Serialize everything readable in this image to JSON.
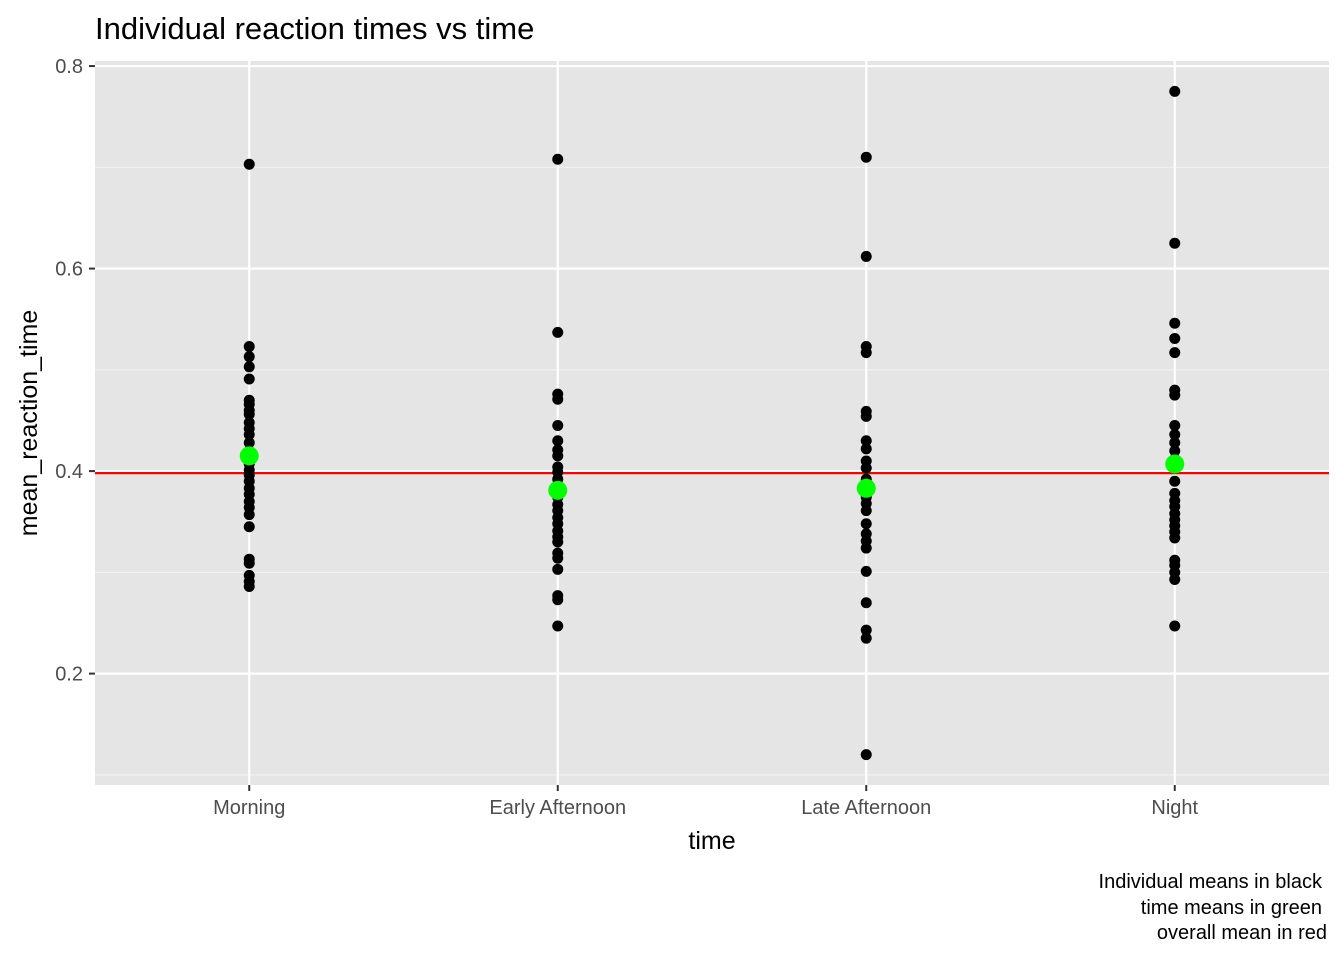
{
  "chart_data": {
    "type": "scatter",
    "title": "Individual reaction times vs time",
    "xlabel": "time",
    "ylabel": "mean_reaction_time",
    "categories": [
      "Morning",
      "Early Afternoon",
      "Late Afternoon",
      "Night"
    ],
    "ylim": [
      0.09,
      0.805
    ],
    "yticks": [
      0.2,
      0.4,
      0.6,
      0.8
    ],
    "ytick_labels": [
      "0.2",
      "0.4",
      "0.6",
      "0.8"
    ],
    "grid": true,
    "caption": [
      "Individual means in black",
      "time means in green",
      "overall mean in red"
    ],
    "series": [
      {
        "color": "#000000",
        "points": {
          "Morning": [
            0.703,
            0.523,
            0.513,
            0.503,
            0.491,
            0.47,
            0.466,
            0.46,
            0.456,
            0.448,
            0.442,
            0.436,
            0.428,
            0.42,
            0.413,
            0.407,
            0.401,
            0.396,
            0.39,
            0.383,
            0.377,
            0.37,
            0.364,
            0.357,
            0.345,
            0.313,
            0.309,
            0.297,
            0.291,
            0.286
          ],
          "Early Afternoon": [
            0.708,
            0.537,
            0.476,
            0.471,
            0.445,
            0.43,
            0.421,
            0.415,
            0.404,
            0.399,
            0.392,
            0.386,
            0.38,
            0.374,
            0.367,
            0.361,
            0.354,
            0.348,
            0.341,
            0.335,
            0.33,
            0.319,
            0.314,
            0.303,
            0.277,
            0.273,
            0.247
          ],
          "Late Afternoon": [
            0.71,
            0.612,
            0.523,
            0.517,
            0.459,
            0.454,
            0.43,
            0.422,
            0.41,
            0.403,
            0.392,
            0.386,
            0.381,
            0.374,
            0.368,
            0.361,
            0.348,
            0.338,
            0.331,
            0.324,
            0.301,
            0.27,
            0.243,
            0.235,
            0.12
          ],
          "Night": [
            0.775,
            0.625,
            0.546,
            0.531,
            0.517,
            0.48,
            0.475,
            0.445,
            0.436,
            0.428,
            0.42,
            0.412,
            0.403,
            0.39,
            0.378,
            0.371,
            0.365,
            0.358,
            0.352,
            0.346,
            0.34,
            0.334,
            0.312,
            0.307,
            0.3,
            0.293,
            0.247
          ]
        }
      },
      {
        "color": "#00ff00",
        "values": [
          0.415,
          0.381,
          0.383,
          0.407
        ]
      },
      {
        "color": "#ff0000",
        "hline": 0.398
      }
    ]
  }
}
